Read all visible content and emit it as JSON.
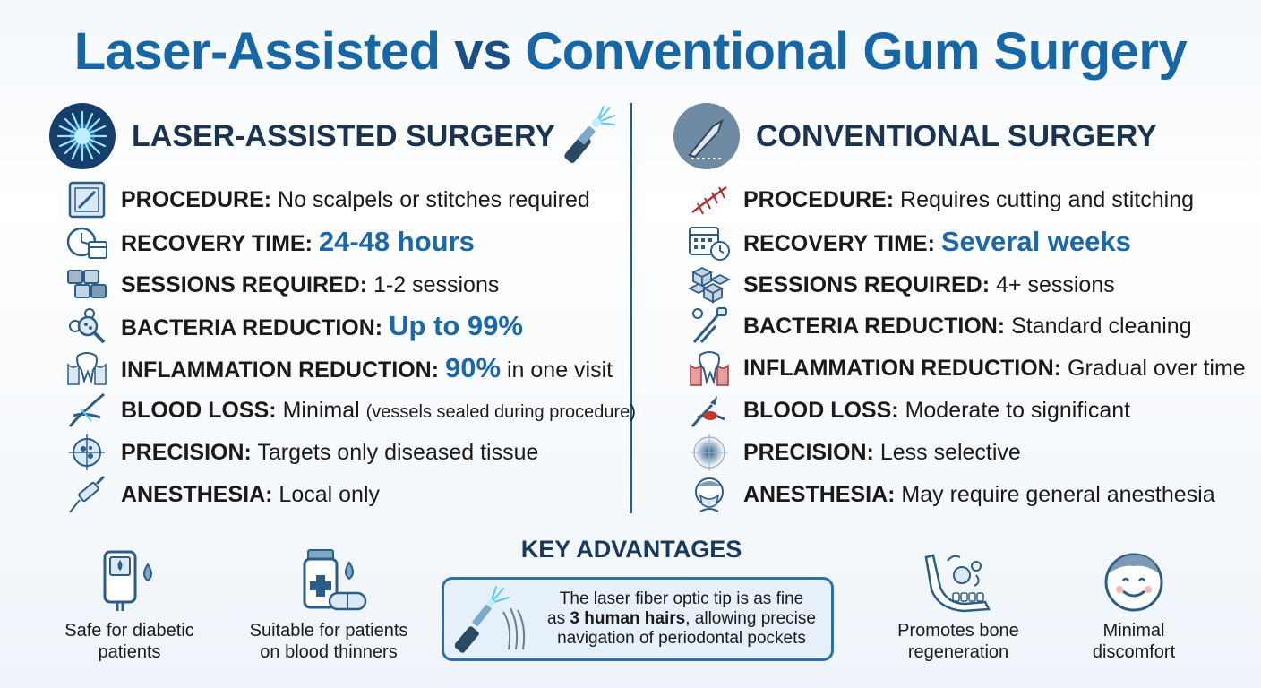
{
  "title": {
    "part1": "Laser-Assisted",
    "vs": "vs",
    "part2": "Conventional Gum Surgery"
  },
  "laser": {
    "heading": "LASER-ASSISTED SURGERY",
    "rows": [
      {
        "icon": "procedure-icon",
        "label": "PROCEDURE:",
        "value": "No scalpels or stitches required"
      },
      {
        "icon": "clock-calendar-icon",
        "label": "RECOVERY TIME:",
        "highlight": "24-48 hours"
      },
      {
        "icon": "sessions-icon",
        "label": "SESSIONS REQUIRED:",
        "value": "1-2 sessions"
      },
      {
        "icon": "bacteria-magnifier-icon",
        "label": "BACTERIA REDUCTION:",
        "highlight": "Up to 99%"
      },
      {
        "icon": "tooth-icon",
        "label": "INFLAMMATION REDUCTION:",
        "highlight": "90%",
        "value": "in one visit"
      },
      {
        "icon": "sealed-vessel-icon",
        "label": "BLOOD LOSS:",
        "value": "Minimal",
        "small": "(vessels sealed during procedure)"
      },
      {
        "icon": "target-icon",
        "label": "PRECISION:",
        "value": "Targets only diseased tissue"
      },
      {
        "icon": "syringe-icon",
        "label": "ANESTHESIA:",
        "value": "Local only"
      }
    ]
  },
  "conventional": {
    "heading": "CONVENTIONAL SURGERY",
    "rows": [
      {
        "icon": "stitches-icon",
        "label": "PROCEDURE:",
        "value": "Requires cutting and stitching"
      },
      {
        "icon": "calendar-clock-icon",
        "label": "RECOVERY TIME:",
        "highlight": "Several weeks"
      },
      {
        "icon": "cubes-icon",
        "label": "SESSIONS REQUIRED:",
        "value": "4+ sessions"
      },
      {
        "icon": "cleaning-tools-icon",
        "label": "BACTERIA REDUCTION:",
        "value": "Standard cleaning"
      },
      {
        "icon": "inflamed-tooth-icon",
        "label": "INFLAMMATION REDUCTION:",
        "value": "Gradual over time"
      },
      {
        "icon": "bleeding-cut-icon",
        "label": "BLOOD LOSS:",
        "value": "Moderate to significant"
      },
      {
        "icon": "blurry-target-icon",
        "label": "PRECISION:",
        "value": "Less selective"
      },
      {
        "icon": "masked-patient-icon",
        "label": "ANESTHESIA:",
        "value": "May require general anesthesia"
      }
    ]
  },
  "key_advantages": {
    "title": "KEY ADVANTAGES",
    "box_line1": "The laser fiber optic tip is as fine",
    "box_line2_pre": "as",
    "box_line2_bold": "3 human hairs",
    "box_line2_post": ", allowing precise",
    "box_line3": "navigation of periodontal pockets",
    "items": [
      {
        "icon": "glucose-meter-icon",
        "line1": "Safe for diabetic",
        "line2": "patients"
      },
      {
        "icon": "medicine-bottle-icon",
        "line1": "Suitable for patients",
        "line2": "on blood thinners"
      },
      {
        "icon": "jaw-bone-icon",
        "line1": "Promotes bone",
        "line2": "regeneration"
      },
      {
        "icon": "smiling-face-icon",
        "line1": "Minimal",
        "line2": "discomfort"
      }
    ]
  },
  "colors": {
    "accent": "#1766a6",
    "heading": "#1b3350",
    "highlight": "#1b68a8",
    "icon": "#2c5d86",
    "blood": "#c0392b"
  }
}
